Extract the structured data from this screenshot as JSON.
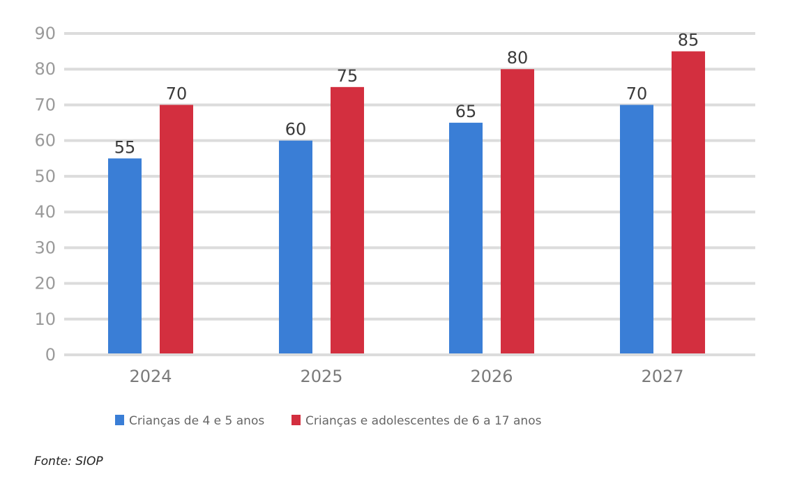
{
  "chart_data": {
    "type": "bar",
    "categories": [
      "2024",
      "2025",
      "2026",
      "2027"
    ],
    "series": [
      {
        "name": "Crianças de 4 e 5 anos",
        "values": [
          55,
          60,
          65,
          70
        ],
        "color": "#3a7ed6"
      },
      {
        "name": "Crianças e adolescentes de 6 a 17 anos",
        "values": [
          70,
          75,
          80,
          85
        ],
        "color": "#d32f3f"
      }
    ],
    "ylim": [
      0,
      90
    ],
    "yticks": [
      0,
      10,
      20,
      30,
      40,
      50,
      60,
      70,
      80,
      90
    ],
    "grid": true,
    "legend_position": "bottom",
    "source": "Fonte: SIOP"
  }
}
